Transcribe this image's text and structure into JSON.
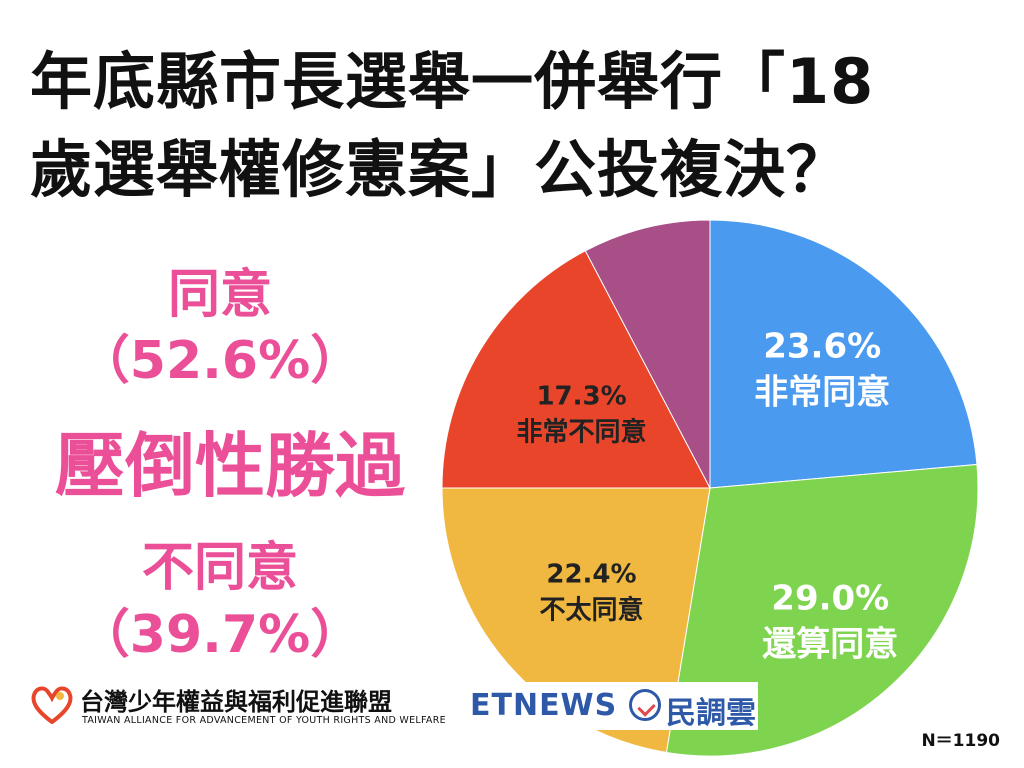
{
  "title": {
    "line1": "年底縣市長選舉一併舉行「18",
    "line2": "歲選舉權修憲案」公投複決？"
  },
  "summary": {
    "agree_label": "同意",
    "agree_pct": "（52.6%）",
    "verdict": "壓倒性勝過",
    "disagree_label": "不同意",
    "disagree_pct": "（39.7%）"
  },
  "chart_data": {
    "type": "pie",
    "start": "top",
    "direction": "clockwise",
    "slices": [
      {
        "name": "非常同意",
        "value": 23.6,
        "label": "23.6%",
        "color": "#4a9af0",
        "text_color": "#ffffff"
      },
      {
        "name": "還算同意",
        "value": 29.0,
        "label": "29.0%",
        "color": "#7fd44f",
        "text_color": "#ffffff"
      },
      {
        "name": "不太同意",
        "value": 22.4,
        "label": "22.4%",
        "color": "#f0b840",
        "text_color": "#222222"
      },
      {
        "name": "非常不同意",
        "value": 17.3,
        "label": "17.3%",
        "color": "#e8452a",
        "text_color": "#222222"
      },
      {
        "name": "",
        "value": 7.7,
        "label": "",
        "color": "#a84f88",
        "text_color": "#ffffff"
      }
    ]
  },
  "footer": {
    "org_name": "台灣少年權益與福利促進聯盟",
    "org_sub": "TAIWAN ALLIANCE FOR ADVANCEMENT OF YOUTH RIGHTS AND WELFARE",
    "media_latin": "ETNEWS",
    "media_cn": "民調雲",
    "sample_size": "N＝1190"
  },
  "colors": {
    "accent_pink": "#ea4f97",
    "brand_blue": "#2d59a8"
  }
}
